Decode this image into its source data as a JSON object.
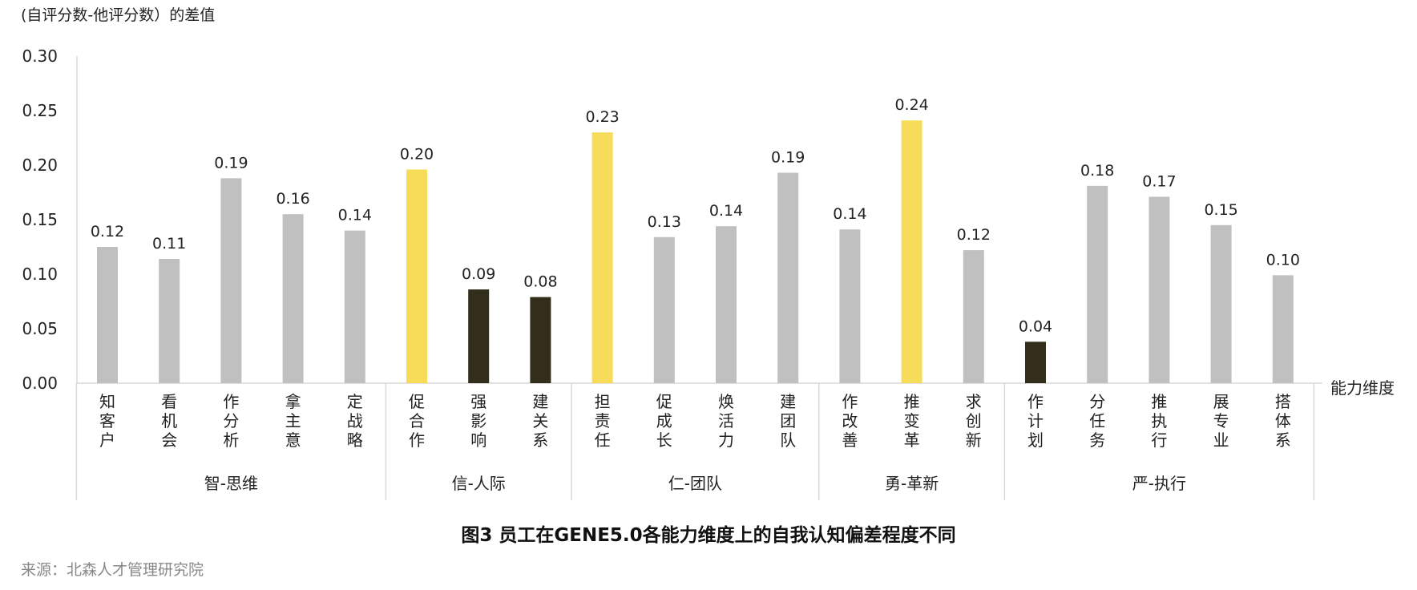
{
  "caption": "图3 员工在GENE5.0各能力维度上的自我认知偏差程度不同",
  "source": "来源：北森人才管理研究院",
  "colors": {
    "gray": "#C0C0C0",
    "yellow": "#F7DC5A",
    "dark": "#332E1B",
    "axis": "#D9D9D9"
  },
  "chart_data": {
    "type": "bar",
    "title": "",
    "ylabel": "(自评分数-他评分数）的差值",
    "xlabel": "能力维度",
    "ylim": [
      0,
      0.3
    ],
    "yticks": [
      "0.00",
      "0.05",
      "0.10",
      "0.15",
      "0.20",
      "0.25",
      "0.30"
    ],
    "grid": false,
    "groups": [
      {
        "name": "智-思维",
        "start": 0,
        "count": 5
      },
      {
        "name": "信-人际",
        "start": 5,
        "count": 3
      },
      {
        "name": "仁-团队",
        "start": 8,
        "count": 4
      },
      {
        "name": "勇-革新",
        "start": 12,
        "count": 3
      },
      {
        "name": "严-执行",
        "start": 15,
        "count": 5
      }
    ],
    "categories": [
      "知客户",
      "看机会",
      "作分析",
      "拿主意",
      "定战略",
      "促合作",
      "强影响",
      "建关系",
      "担责任",
      "促成长",
      "焕活力",
      "建团队",
      "作改善",
      "推变革",
      "求创新",
      "作计划",
      "分任务",
      "推执行",
      "展专业",
      "搭体系"
    ],
    "values": [
      0.125,
      0.114,
      0.188,
      0.155,
      0.14,
      0.196,
      0.086,
      0.079,
      0.23,
      0.134,
      0.144,
      0.193,
      0.141,
      0.241,
      0.122,
      0.038,
      0.181,
      0.171,
      0.145,
      0.099
    ],
    "value_labels": [
      "0.12",
      "0.11",
      "0.19",
      "0.16",
      "0.14",
      "0.20",
      "0.09",
      "0.08",
      "0.23",
      "0.13",
      "0.14",
      "0.19",
      "0.14",
      "0.24",
      "0.12",
      "0.04",
      "0.18",
      "0.17",
      "0.15",
      "0.10"
    ],
    "bar_colors": [
      "gray",
      "gray",
      "gray",
      "gray",
      "gray",
      "yellow",
      "dark",
      "dark",
      "yellow",
      "gray",
      "gray",
      "gray",
      "gray",
      "yellow",
      "gray",
      "dark",
      "gray",
      "gray",
      "gray",
      "gray"
    ]
  }
}
